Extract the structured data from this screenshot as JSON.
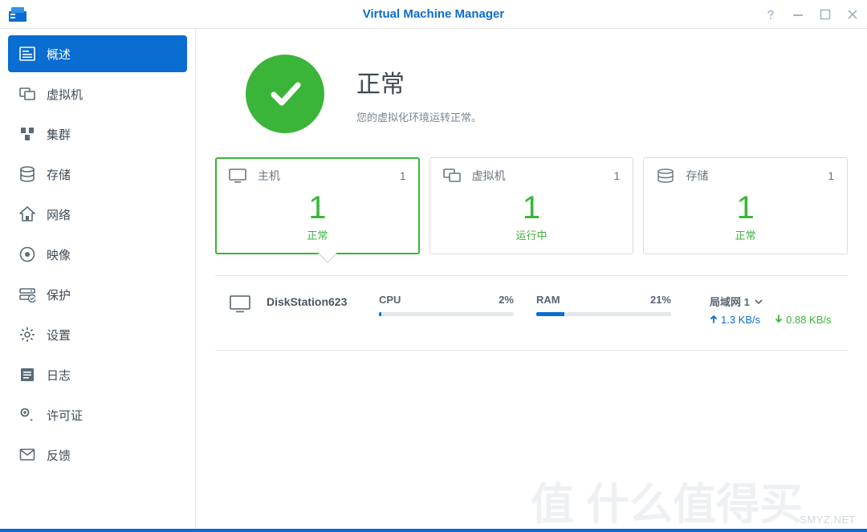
{
  "window": {
    "title": "Virtual Machine Manager"
  },
  "sidebar": {
    "items": [
      {
        "key": "overview",
        "label": "概述",
        "active": true
      },
      {
        "key": "vm",
        "label": "虚拟机",
        "active": false
      },
      {
        "key": "cluster",
        "label": "集群",
        "active": false
      },
      {
        "key": "storage",
        "label": "存储",
        "active": false
      },
      {
        "key": "network",
        "label": "网络",
        "active": false
      },
      {
        "key": "image",
        "label": "映像",
        "active": false
      },
      {
        "key": "protect",
        "label": "保护",
        "active": false
      },
      {
        "key": "settings",
        "label": "设置",
        "active": false
      },
      {
        "key": "log",
        "label": "日志",
        "active": false
      },
      {
        "key": "license",
        "label": "许可证",
        "active": false
      },
      {
        "key": "feedback",
        "label": "反馈",
        "active": false
      }
    ]
  },
  "status": {
    "title": "正常",
    "subtitle": "您的虚拟化环境运转正常。",
    "color": "#3ab53a"
  },
  "cards": [
    {
      "key": "host",
      "label": "主机",
      "count": "1",
      "value": "1",
      "status": "正常",
      "active": true
    },
    {
      "key": "vm",
      "label": "虚拟机",
      "count": "1",
      "value": "1",
      "status": "运行中",
      "active": false
    },
    {
      "key": "storage",
      "label": "存储",
      "count": "1",
      "value": "1",
      "status": "正常",
      "active": false
    }
  ],
  "host": {
    "name": "DiskStation623",
    "cpu": {
      "label": "CPU",
      "text": "2%",
      "percent": 2,
      "color": "#0a6dd1"
    },
    "ram": {
      "label": "RAM",
      "text": "21%",
      "percent": 21,
      "color": "#0a6dd1"
    },
    "network": {
      "name": "局域网 1",
      "up": "1.3 KB/s",
      "down": "0.88 KB/s",
      "up_color": "#0a6dd1",
      "down_color": "#3ab53a"
    }
  },
  "watermark": "SMYZ.NET",
  "colors": {
    "accent": "#0a6dd1",
    "ok": "#3ab53a",
    "border": "#d7dde2",
    "text_muted": "#7a8793"
  }
}
